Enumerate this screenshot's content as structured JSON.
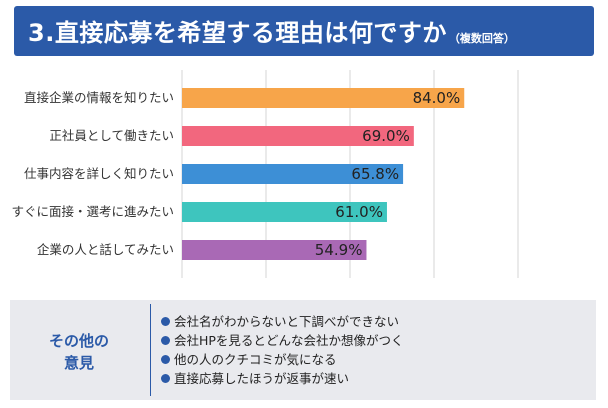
{
  "header": {
    "title": "3.直接応募を希望する理由は何ですか",
    "subtitle": "（複数回答）",
    "background": "#2b5aa8"
  },
  "chart_data": {
    "type": "bar",
    "orientation": "horizontal",
    "title": "3.直接応募を希望する理由は何ですか（複数回答）",
    "unit": "%",
    "xlim": [
      0,
      100
    ],
    "grid": true,
    "categories": [
      "直接企業の情報を知りたい",
      "正社員として働きたい",
      "仕事内容を詳しく知りたい",
      "すぐに面接・選考に進みたい",
      "企業の人と話してみたい"
    ],
    "values": [
      84.0,
      69.0,
      65.8,
      61.0,
      54.9
    ],
    "value_labels": [
      "84.0%",
      "69.0%",
      "65.8%",
      "61.0%",
      "54.9%"
    ],
    "colors": [
      "#f7a54a",
      "#f2677e",
      "#3d8fd6",
      "#3ec5be",
      "#a969b5"
    ]
  },
  "others": {
    "title_line1": "その他の",
    "title_line2": "意見",
    "items": [
      "会社名がわからないと下調べができない",
      "会社HPを見るとどんな会社か想像がつく",
      "他の人のクチコミが気になる",
      "直接応募したほうが返事が速い"
    ],
    "accent": "#2b5aa8"
  }
}
